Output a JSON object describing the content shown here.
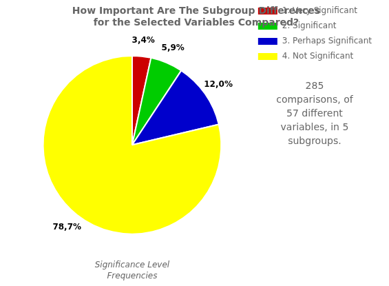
{
  "chart_data": {
    "type": "pie",
    "title": "How Important Are The Subgroup Differences\nfor the Selected Variables Compared?",
    "categories": [
      "1. Very Significant",
      "2. Significant",
      "3. Perhaps Significant",
      "4. Not Significant"
    ],
    "values": [
      3.4,
      5.9,
      12.0,
      78.7
    ],
    "value_labels": [
      "3,4%",
      "5,9%",
      "12,0%",
      "78,7%"
    ],
    "colors": [
      "#cc0000",
      "#00cc00",
      "#0000cc",
      "#ffff00"
    ],
    "data_labels": true,
    "legend": "right",
    "xlabel": "Significance Level\nFrequencies",
    "annotation": "285\ncomparisons, of\n57 different\nvariables, in 5\nsubgroups."
  }
}
